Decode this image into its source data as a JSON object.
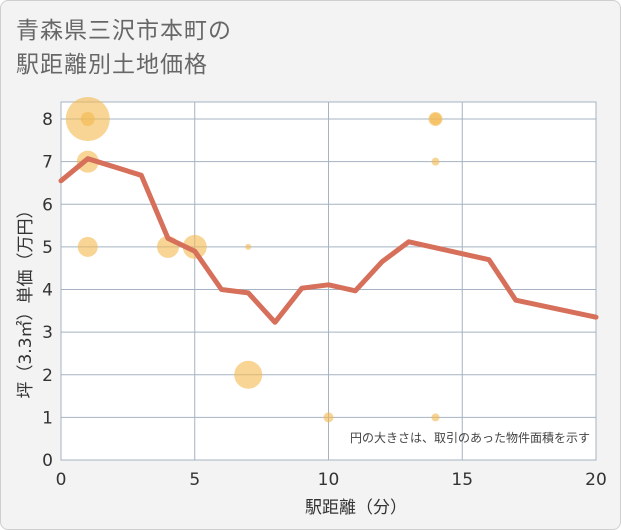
{
  "title_line1": "青森県三沢市本町の",
  "title_line2": "駅距離別土地価格",
  "chart_data": {
    "type": "scatter+line",
    "xlabel": "駅距離（分）",
    "ylabel": "坪（3.3㎡）単価（万円）",
    "xlim": [
      0,
      20
    ],
    "ylim": [
      0,
      8.4
    ],
    "x_ticks": [
      "0",
      "5",
      "10",
      "15",
      "20"
    ],
    "y_ticks": [
      "0",
      "1",
      "2",
      "3",
      "4",
      "5",
      "6",
      "7",
      "8"
    ],
    "note": "円の大きさは、取引のあった物件面積を示す",
    "line_color": "#d6705b",
    "bubble_color": "#f3b94f",
    "trend_line": [
      {
        "x": 0,
        "y": 6.55
      },
      {
        "x": 1,
        "y": 7.07
      },
      {
        "x": 3,
        "y": 6.68
      },
      {
        "x": 4,
        "y": 5.2
      },
      {
        "x": 5,
        "y": 4.9
      },
      {
        "x": 6,
        "y": 4.0
      },
      {
        "x": 7,
        "y": 3.92
      },
      {
        "x": 8,
        "y": 3.23
      },
      {
        "x": 9,
        "y": 4.03
      },
      {
        "x": 10,
        "y": 4.11
      },
      {
        "x": 11,
        "y": 3.97
      },
      {
        "x": 12,
        "y": 4.65
      },
      {
        "x": 13,
        "y": 5.12
      },
      {
        "x": 16,
        "y": 4.7
      },
      {
        "x": 17,
        "y": 3.75
      },
      {
        "x": 20,
        "y": 3.35
      }
    ],
    "bubbles": [
      {
        "x": 1,
        "y": 8,
        "size": 22
      },
      {
        "x": 1,
        "y": 8,
        "size": 7
      },
      {
        "x": 1,
        "y": 7,
        "size": 11
      },
      {
        "x": 1,
        "y": 5,
        "size": 10
      },
      {
        "x": 4,
        "y": 5,
        "size": 11
      },
      {
        "x": 5,
        "y": 5,
        "size": 12
      },
      {
        "x": 7,
        "y": 5,
        "size": 3
      },
      {
        "x": 7,
        "y": 2,
        "size": 14
      },
      {
        "x": 10,
        "y": 1,
        "size": 5
      },
      {
        "x": 14,
        "y": 8,
        "size": 7
      },
      {
        "x": 14,
        "y": 8,
        "size": 6
      },
      {
        "x": 14,
        "y": 7,
        "size": 4
      },
      {
        "x": 14,
        "y": 1,
        "size": 4
      }
    ]
  }
}
